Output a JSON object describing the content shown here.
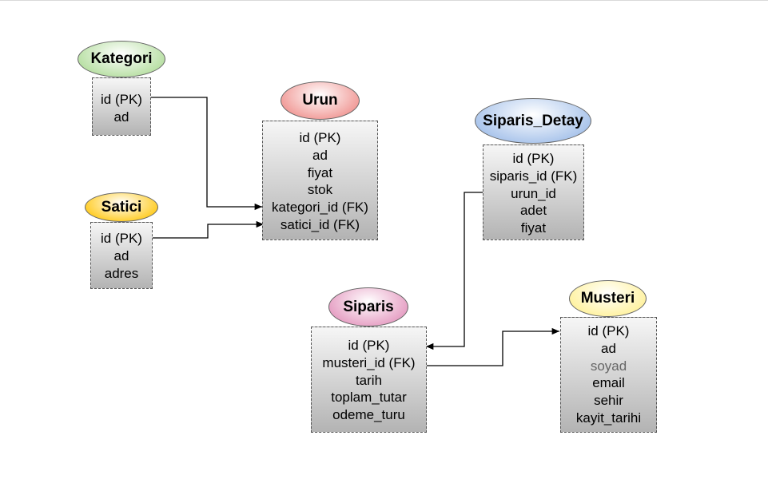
{
  "entities": {
    "kategori": {
      "title": "Kategori",
      "color": "#b9e0a5",
      "fields": [
        "id (PK)",
        "ad"
      ]
    },
    "satici": {
      "title": "Satici",
      "color": "#ffcd28",
      "fields": [
        "id (PK)",
        "ad",
        "adres"
      ]
    },
    "urun": {
      "title": "Urun",
      "color": "#f19c99",
      "fields": [
        "id (PK)",
        "ad",
        "fiyat",
        "stok",
        "kategori_id (FK)",
        "satici_id (FK)"
      ]
    },
    "siparis_detay": {
      "title": "Siparis_Detay",
      "color": "#a9c4eb",
      "fields": [
        "id (PK)",
        "siparis_id (FK)",
        "urun_id",
        "adet",
        "fiyat"
      ]
    },
    "siparis": {
      "title": "Siparis",
      "color": "#e6a0c4",
      "fields": [
        "id (PK)",
        "musteri_id (FK)",
        "tarih",
        "toplam_tutar",
        "odeme_turu"
      ]
    },
    "musteri": {
      "title": "Musteri",
      "color": "#fff2a1",
      "fields": [
        "id (PK)",
        "ad",
        "soyad",
        "email",
        "sehir",
        "kayit_tarihi"
      ]
    }
  },
  "relationships": [
    {
      "from": "kategori",
      "to": "urun"
    },
    {
      "from": "satici",
      "to": "urun"
    },
    {
      "from": "siparis_detay",
      "to": "siparis"
    },
    {
      "from": "siparis",
      "to": "musteri"
    }
  ]
}
